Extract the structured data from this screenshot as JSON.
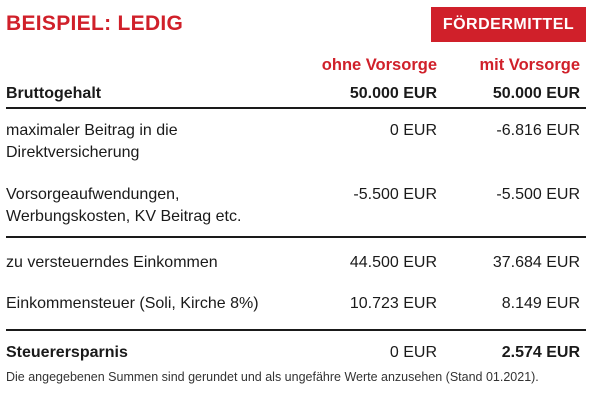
{
  "header": {
    "title": "BEISPIEL: LEDIG",
    "badge": "FÖRDERMITTEL"
  },
  "columns": {
    "col1": "ohne Vorsorge",
    "col2": "mit Vorsorge"
  },
  "rows": [
    {
      "label": "Bruttogehalt",
      "col1": "50.000 EUR",
      "col2": "50.000 EUR"
    },
    {
      "label_line1": "maximaler Beitrag in die",
      "label_line2": "Direktversicherung",
      "col1": "0 EUR",
      "col2": "-6.816 EUR"
    },
    {
      "label_line1": "Vorsorgeaufwendungen,",
      "label_line2": "Werbungskosten, KV Beitrag etc.",
      "col1": "-5.500 EUR",
      "col2": "-5.500 EUR"
    },
    {
      "label": "zu versteuerndes Einkommen",
      "col1": "44.500 EUR",
      "col2": "37.684 EUR"
    },
    {
      "label": "Einkommensteuer (Soli, Kirche 8%)",
      "col1": "10.723 EUR",
      "col2": "8.149 EUR"
    },
    {
      "label": "Steuerersparnis",
      "col1": "0 EUR",
      "col2": "2.574 EUR"
    }
  ],
  "footnote": "Die angegebenen Summen sind gerundet und als ungefähre Werte anzusehen (Stand 01.2021).",
  "colors": {
    "accent": "#d0202a",
    "text": "#1a1a1a"
  }
}
